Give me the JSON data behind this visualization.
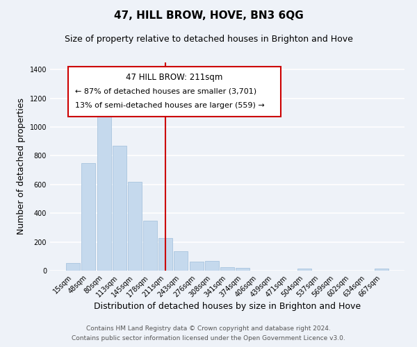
{
  "title": "47, HILL BROW, HOVE, BN3 6QG",
  "subtitle": "Size of property relative to detached houses in Brighton and Hove",
  "xlabel": "Distribution of detached houses by size in Brighton and Hove",
  "ylabel": "Number of detached properties",
  "bin_labels": [
    "15sqm",
    "48sqm",
    "80sqm",
    "113sqm",
    "145sqm",
    "178sqm",
    "211sqm",
    "243sqm",
    "276sqm",
    "308sqm",
    "341sqm",
    "374sqm",
    "406sqm",
    "439sqm",
    "471sqm",
    "504sqm",
    "537sqm",
    "569sqm",
    "602sqm",
    "634sqm",
    "667sqm"
  ],
  "bar_values": [
    55,
    750,
    1090,
    870,
    620,
    350,
    225,
    135,
    65,
    70,
    25,
    20,
    0,
    0,
    0,
    15,
    0,
    0,
    0,
    0,
    15
  ],
  "bar_color": "#c5d9ed",
  "bar_edge_color": "#a8c4de",
  "highlight_index": 6,
  "highlight_line_color": "#cc0000",
  "annotation_title": "47 HILL BROW: 211sqm",
  "annotation_line1": "← 87% of detached houses are smaller (3,701)",
  "annotation_line2": "13% of semi-detached houses are larger (559) →",
  "annotation_box_color": "#ffffff",
  "annotation_box_edge_color": "#cc0000",
  "ylim": [
    0,
    1450
  ],
  "yticks": [
    0,
    200,
    400,
    600,
    800,
    1000,
    1200,
    1400
  ],
  "footer_line1": "Contains HM Land Registry data © Crown copyright and database right 2024.",
  "footer_line2": "Contains public sector information licensed under the Open Government Licence v3.0.",
  "background_color": "#eef2f8",
  "grid_color": "#ffffff",
  "title_fontsize": 11,
  "subtitle_fontsize": 9,
  "axis_label_fontsize": 9,
  "tick_fontsize": 7,
  "annotation_title_fontsize": 8.5,
  "annotation_text_fontsize": 8,
  "footer_fontsize": 6.5
}
